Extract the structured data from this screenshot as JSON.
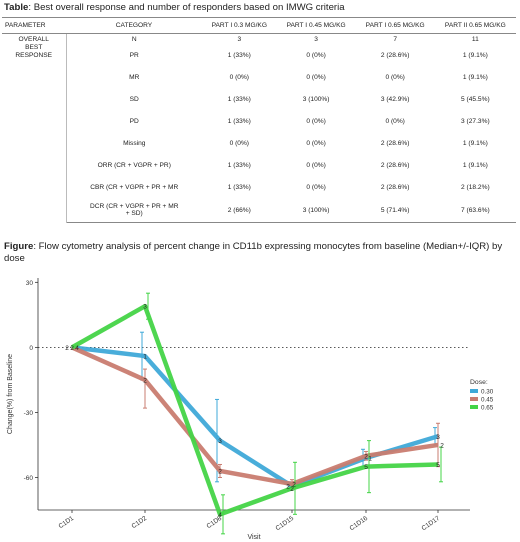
{
  "table_caption": {
    "bold": "Table",
    "text": ": Best overall response and number of responders based on IMWG criteria"
  },
  "table": {
    "headers": [
      "PARAMETER",
      "CATEGORY",
      "PART I 0.3 MG/KG",
      "PART I 0.45 MG/KG",
      "PART I 0.65 MG/KG",
      "PART II 0.65 MG/KG"
    ],
    "parameter": [
      "OVERALL",
      "BEST",
      "RESPONSE"
    ],
    "rows": [
      {
        "category": "N",
        "values": [
          "3",
          "3",
          "7",
          "11"
        ]
      },
      {
        "category": "PR",
        "values": [
          "1 (33%)",
          "0 (0%)",
          "2 (28.6%)",
          "1 (9.1%)"
        ]
      },
      {
        "category": "MR",
        "values": [
          "0 (0%)",
          "0 (0%)",
          "0 (0%)",
          "1 (9.1%)"
        ]
      },
      {
        "category": "SD",
        "values": [
          "1 (33%)",
          "3 (100%)",
          "3 (42.9%)",
          "5 (45.5%)"
        ]
      },
      {
        "category": "PD",
        "values": [
          "1 (33%)",
          "0 (0%)",
          "0 (0%)",
          "3 (27.3%)"
        ]
      },
      {
        "category": "Missing",
        "values": [
          "0 (0%)",
          "0 (0%)",
          "2 (28.6%)",
          "1 (9.1%)"
        ]
      },
      {
        "category": "ORR (CR + VGPR + PR)",
        "values": [
          "1 (33%)",
          "0 (0%)",
          "2 (28.6%)",
          "1 (9.1%)"
        ]
      },
      {
        "category": "CBR (CR + VGPR + PR + MR",
        "values": [
          "1 (33%)",
          "0 (0%)",
          "2 (28.6%)",
          "2 (18.2%)"
        ]
      },
      {
        "category": "DCR (CR + VGPR + PR + MR",
        "category2": "+ SD)",
        "values": [
          "2 (66%)",
          "3 (100%)",
          "5 (71.4%)",
          "7 (63.6%)"
        ]
      }
    ]
  },
  "figure_caption": {
    "bold": "Figure",
    "text": ": Flow cytometry analysis of percent change in CD11b expressing monocytes from baseline (Median+/-IQR) by dose"
  },
  "chart_data": {
    "type": "line",
    "xlabel": "Visit",
    "ylabel": "Change(%) from Baseline",
    "categories": [
      "C1D1",
      "C1D2",
      "C1D8",
      "C1D15",
      "C1D16",
      "C1D17"
    ],
    "ylim": [
      -75,
      32
    ],
    "yticks": [
      30,
      0,
      -30,
      -60
    ],
    "reference_line": 0,
    "legend_title": "Dose:",
    "legend_position": "right",
    "series": [
      {
        "name": "0.30",
        "color": "#3fa9d8",
        "values": [
          0,
          -4,
          -43,
          -64,
          -51,
          -41
        ],
        "lower": [
          null,
          -15,
          -62,
          -66,
          -55,
          -45
        ],
        "upper": [
          null,
          7,
          -24,
          -62,
          -47,
          -37
        ],
        "n_labels": [
          "2",
          "1",
          "3",
          "2",
          "1",
          "3"
        ]
      },
      {
        "name": "0.45",
        "color": "#c97c70",
        "values": [
          0,
          -15,
          -57,
          -63,
          -50,
          -45
        ],
        "lower": [
          null,
          -28,
          -60,
          -65,
          -52,
          -55
        ],
        "upper": [
          null,
          -10,
          -54,
          -61,
          -48,
          -35
        ],
        "n_labels": [
          "2",
          "2",
          "2",
          "2",
          "2",
          "2"
        ]
      },
      {
        "name": "0.65",
        "color": "#44d447",
        "values": [
          0,
          19,
          -77,
          -65,
          -55,
          -54
        ],
        "lower": [
          null,
          13,
          -86,
          -77,
          -67,
          -62
        ],
        "upper": [
          null,
          25,
          -68,
          -53,
          -43,
          -46
        ],
        "n_labels": [
          "4",
          "3",
          "4",
          "2",
          "5",
          "5"
        ]
      }
    ]
  }
}
